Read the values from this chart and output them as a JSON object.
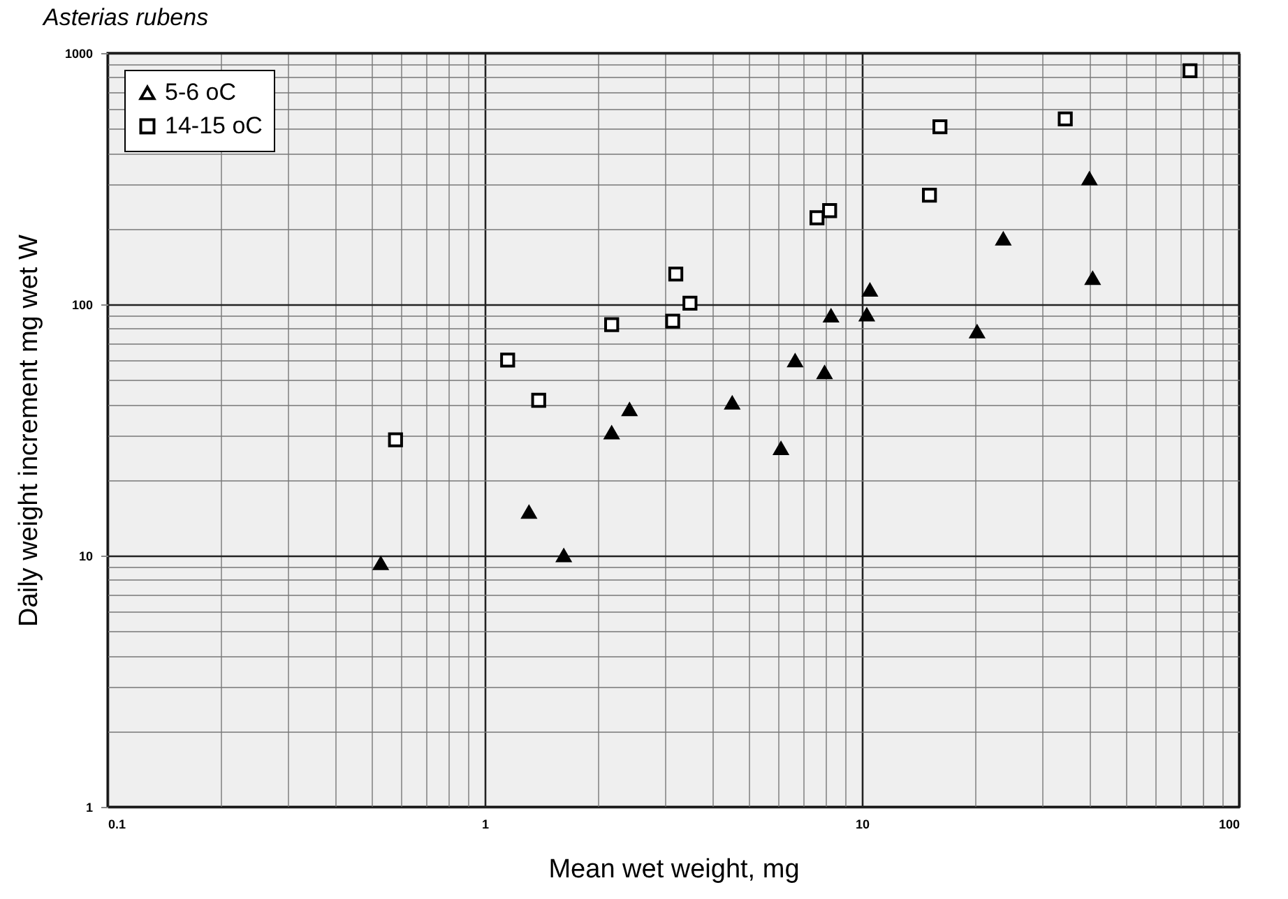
{
  "chart_data": {
    "type": "scatter",
    "title": "Asterias rubens",
    "xlabel": "Mean wet weight, mg",
    "ylabel": "Daily weight increment mg wet W",
    "log": "xy",
    "grid": true,
    "legend": "top left",
    "xlim": [
      0.1,
      100
    ],
    "xticks": [
      0.1,
      1,
      10,
      100
    ],
    "ylim": [
      1,
      1000
    ],
    "yticks": [
      1,
      10,
      100,
      1000
    ],
    "series": [
      {
        "name": "5-6 oC",
        "color": "#000000",
        "marker": "triangle",
        "x": [
          0.53,
          1.31,
          1.62,
          2.17,
          2.42,
          4.53,
          6.1,
          6.65,
          7.96,
          8.28,
          10.3,
          10.5,
          20.2,
          23.7,
          40.1,
          40.9
        ],
        "values": [
          9.3,
          14.9,
          10,
          30.8,
          38.1,
          40.5,
          26.7,
          59.7,
          53.5,
          90,
          90.8,
          114,
          77.8,
          182,
          316,
          127
        ]
      },
      {
        "name": "14-15 oC",
        "color": "#000000",
        "marker": "square",
        "x": [
          0.58,
          1.15,
          1.39,
          2.17,
          3.15,
          3.21,
          3.5,
          7.6,
          8.21,
          15.1,
          16.1,
          34.6,
          74.1
        ],
        "values": [
          28.9,
          60,
          41.5,
          83,
          85.7,
          132,
          101,
          221,
          236,
          272,
          509,
          547,
          850
        ]
      }
    ]
  }
}
